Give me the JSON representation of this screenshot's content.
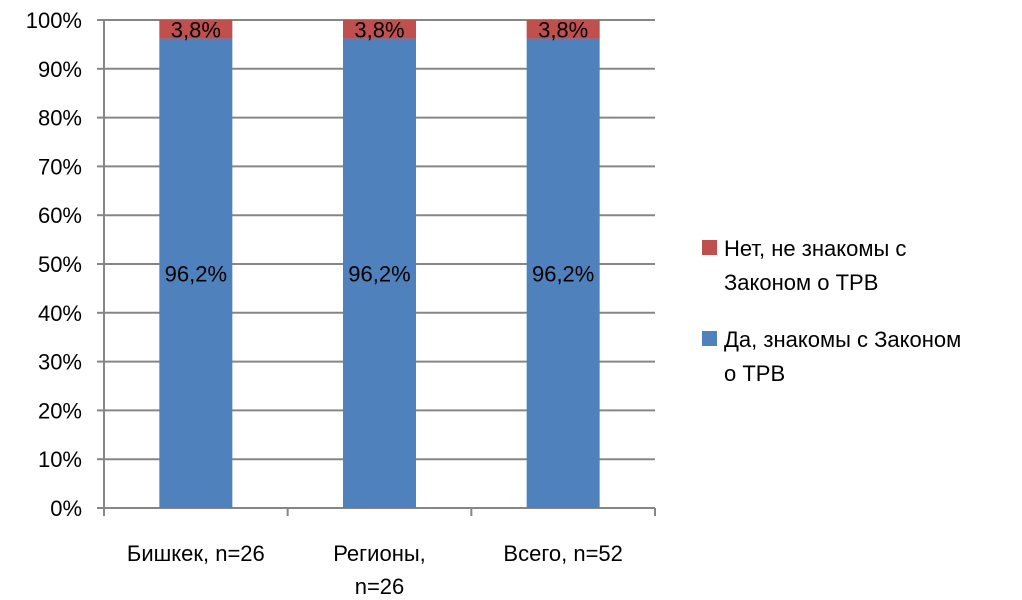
{
  "chart_data": {
    "type": "bar",
    "stacked": true,
    "percent": true,
    "categories": [
      [
        "Бишкек, n=26"
      ],
      [
        "Регионы,",
        "n=26"
      ],
      [
        "Всего, n=52"
      ]
    ],
    "series": [
      {
        "name": "Да, знакомы с Законом о ТРВ",
        "legend_lines": [
          "Да, знакомы с Законом",
          "о ТРВ"
        ],
        "color": "#4f81bd",
        "values": [
          96.2,
          96.2,
          96.2
        ],
        "labels": [
          "96,2%",
          "96,2%",
          "96,2%"
        ]
      },
      {
        "name": "Нет, не знакомы с Законом о ТРВ",
        "legend_lines": [
          "Нет, не знакомы с",
          "Законом о ТРВ"
        ],
        "color": "#c0504d",
        "values": [
          3.8,
          3.8,
          3.8
        ],
        "labels": [
          "3,8%",
          "3,8%",
          "3,8%"
        ]
      }
    ],
    "ylim": [
      0,
      100
    ],
    "yticks": [
      0,
      10,
      20,
      30,
      40,
      50,
      60,
      70,
      80,
      90,
      100
    ],
    "ytick_labels": [
      "0%",
      "10%",
      "20%",
      "30%",
      "40%",
      "50%",
      "60%",
      "70%",
      "80%",
      "90%",
      "100%"
    ],
    "grid": true,
    "legend_position": "right",
    "legend_order": [
      1,
      0
    ],
    "title": "",
    "xlabel": "",
    "ylabel": ""
  }
}
